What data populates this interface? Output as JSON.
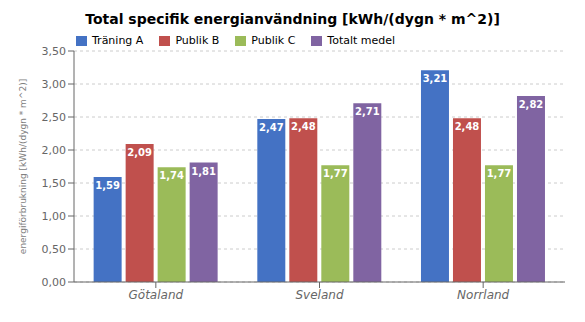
{
  "chart_data": {
    "type": "bar",
    "title": "Total specifik energianvändning [kWh/(dygn * m^2)]",
    "ylabel": "energiförbrukning [kWh/(dygn * m^2)]",
    "categories": [
      "Götaland",
      "Sveland",
      "Norrland"
    ],
    "series": [
      {
        "name": "Träning A",
        "color": "#4472C4",
        "values": [
          1.59,
          2.47,
          3.21
        ],
        "value_labels": [
          "1,59",
          "2,47",
          "3,21"
        ]
      },
      {
        "name": "Publik B",
        "color": "#C0504D",
        "values": [
          2.09,
          2.48,
          2.48
        ],
        "value_labels": [
          "2,09",
          "2,48",
          "2,48"
        ]
      },
      {
        "name": "Publik C",
        "color": "#9BBB59",
        "values": [
          1.74,
          1.77,
          1.77
        ],
        "value_labels": [
          "1,74",
          "1,77",
          "1,77"
        ]
      },
      {
        "name": "Totalt medel",
        "color": "#8064A2",
        "values": [
          1.81,
          2.71,
          2.82
        ],
        "value_labels": [
          "1,81",
          "2,71",
          "2,82"
        ]
      }
    ],
    "ylim": [
      0,
      3.5
    ],
    "yticks": [
      {
        "value": 0.0,
        "label": "0,00"
      },
      {
        "value": 0.5,
        "label": "0,50"
      },
      {
        "value": 1.0,
        "label": "1,00"
      },
      {
        "value": 1.5,
        "label": "1,50"
      },
      {
        "value": 2.0,
        "label": "2,00"
      },
      {
        "value": 2.5,
        "label": "2,50"
      },
      {
        "value": 3.0,
        "label": "3,00"
      },
      {
        "value": 3.5,
        "label": "3,50"
      }
    ],
    "grid": true,
    "legend": "upper left",
    "data_labels": true
  }
}
